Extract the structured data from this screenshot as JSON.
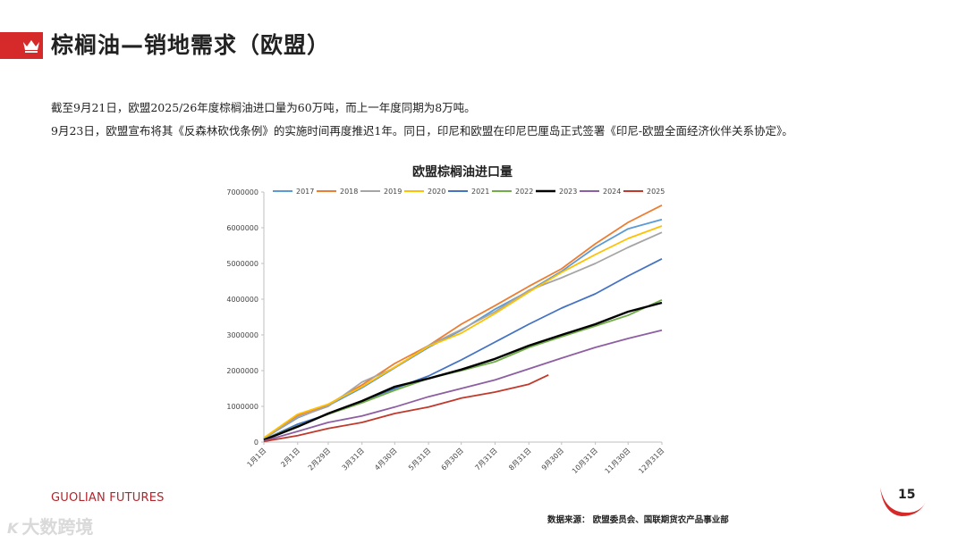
{
  "header": {
    "title": "棕榈油—销地需求（欧盟）"
  },
  "body": {
    "line1": "截至9月21日，欧盟2025/26年度棕榈油进口量为60万吨，而上一年度同期为8万吨。",
    "line2": "9月23日，欧盟宣布将其《反森林砍伐条例》的实施时间再度推迟1年。同日，印尼和欧盟在印尼巴厘岛正式签署《印尼-欧盟全面经济伙伴关系协定》。"
  },
  "footer": {
    "brand_a": "GUOLIAN",
    "brand_b": " FUTURES",
    "page_number": "15",
    "source": "数据来源：   欧盟委员会、国联期货农产品事业部",
    "watermark": "大数跨境",
    "watermark_logo": "K"
  },
  "chart_data": {
    "type": "line",
    "title": "欧盟棕榈油进口量",
    "xlabel": "",
    "ylabel": "",
    "ylim": [
      0,
      7000000
    ],
    "yticks": [
      0,
      1000000,
      2000000,
      3000000,
      4000000,
      5000000,
      6000000,
      7000000
    ],
    "ytick_labels": [
      "0",
      "1000000",
      "2000000",
      "3000000",
      "4000000",
      "5000000",
      "6000000",
      "7000000"
    ],
    "x_ticks": [
      "1月1日",
      "2月1日",
      "2月29日",
      "3月31日",
      "4月30日",
      "5月31日",
      "6月30日",
      "7月31日",
      "8月31日",
      "9月30日",
      "10月31日",
      "11月30日",
      "12月31日"
    ],
    "x_tick_doy": [
      1,
      32,
      60,
      91,
      121,
      152,
      182,
      213,
      244,
      274,
      305,
      335,
      366
    ],
    "x_range_doy": [
      1,
      366
    ],
    "legend_position": "top",
    "grid": false,
    "series": [
      {
        "name": "2017",
        "color": "#5b9bd5",
        "x_doy": [
          1,
          32,
          60,
          91,
          121,
          152,
          182,
          213,
          244,
          274,
          305,
          335,
          366
        ],
        "values": [
          100000,
          680000,
          1020000,
          1520000,
          2080000,
          2650000,
          3130000,
          3720000,
          4230000,
          4780000,
          5450000,
          5970000,
          6230000
        ]
      },
      {
        "name": "2018",
        "color": "#ed7d31",
        "x_doy": [
          1,
          32,
          60,
          91,
          121,
          152,
          182,
          213,
          244,
          274,
          305,
          335,
          366
        ],
        "values": [
          110000,
          750000,
          1050000,
          1600000,
          2200000,
          2700000,
          3300000,
          3820000,
          4360000,
          4850000,
          5550000,
          6150000,
          6630000
        ]
      },
      {
        "name": "2019",
        "color": "#a5a5a5",
        "x_doy": [
          1,
          32,
          60,
          91,
          121,
          152,
          182,
          213,
          244,
          274,
          305,
          335,
          366
        ],
        "values": [
          90000,
          700000,
          1000000,
          1680000,
          2080000,
          2700000,
          3150000,
          3650000,
          4250000,
          4600000,
          5000000,
          5450000,
          5870000
        ]
      },
      {
        "name": "2020",
        "color": "#ffc000",
        "x_doy": [
          1,
          32,
          60,
          91,
          121,
          152,
          182,
          213,
          244,
          274,
          305,
          335,
          366
        ],
        "values": [
          120000,
          780000,
          1060000,
          1550000,
          2100000,
          2680000,
          3050000,
          3600000,
          4200000,
          4750000,
          5250000,
          5700000,
          6050000
        ]
      },
      {
        "name": "2021",
        "color": "#4472c4",
        "x_doy": [
          1,
          32,
          60,
          91,
          121,
          152,
          182,
          213,
          244,
          274,
          305,
          335,
          366
        ],
        "values": [
          70000,
          500000,
          780000,
          1150000,
          1500000,
          1850000,
          2300000,
          2800000,
          3300000,
          3750000,
          4150000,
          4650000,
          5130000
        ]
      },
      {
        "name": "2022",
        "color": "#70ad47",
        "x_doy": [
          1,
          32,
          60,
          91,
          121,
          152,
          182,
          213,
          244,
          274,
          305,
          335,
          366
        ],
        "values": [
          80000,
          450000,
          780000,
          1100000,
          1450000,
          1780000,
          2000000,
          2250000,
          2650000,
          2950000,
          3250000,
          3550000,
          3980000
        ]
      },
      {
        "name": "2023",
        "color": "#000000",
        "x_doy": [
          1,
          32,
          60,
          91,
          121,
          152,
          182,
          213,
          244,
          274,
          305,
          335,
          366
        ],
        "values": [
          60000,
          430000,
          800000,
          1150000,
          1550000,
          1780000,
          2030000,
          2330000,
          2700000,
          3000000,
          3300000,
          3650000,
          3900000
        ]
      },
      {
        "name": "2024",
        "color": "#8e5ea2",
        "x_doy": [
          1,
          32,
          60,
          91,
          121,
          152,
          182,
          213,
          244,
          274,
          305,
          335,
          366
        ],
        "values": [
          30000,
          300000,
          550000,
          730000,
          980000,
          1270000,
          1500000,
          1740000,
          2050000,
          2350000,
          2650000,
          2900000,
          3130000
        ]
      },
      {
        "name": "2025",
        "color": "#c0392b",
        "x_doy": [
          1,
          32,
          60,
          91,
          121,
          152,
          182,
          213,
          244,
          262
        ],
        "values": [
          20000,
          180000,
          380000,
          550000,
          800000,
          980000,
          1230000,
          1400000,
          1620000,
          1880000
        ]
      }
    ]
  }
}
